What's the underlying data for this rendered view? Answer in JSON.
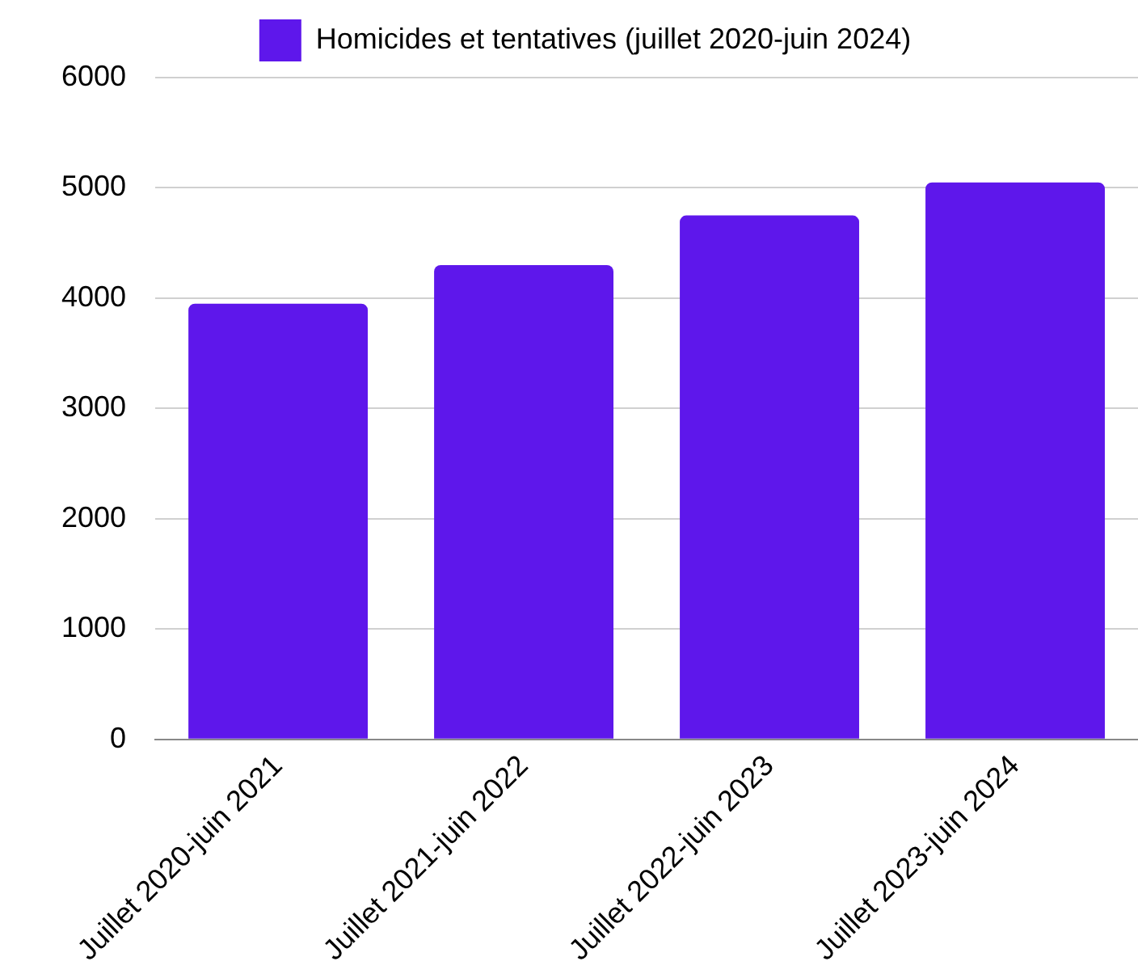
{
  "chart_data": {
    "type": "bar",
    "categories": [
      "Juillet 2020-juin 2021",
      "Juillet 2021-juin 2022",
      "Juillet 2022-juin 2023",
      "Juillet 2023-juin 2024"
    ],
    "series": [
      {
        "name": "Homicides et tentatives (juillet 2020-juin 2024)",
        "color": "#5e17eb",
        "values": [
          3950,
          4300,
          4750,
          5050
        ]
      }
    ],
    "ylim": [
      0,
      6000
    ],
    "yticks": [
      0,
      1000,
      2000,
      3000,
      4000,
      5000,
      6000
    ],
    "grid": "y",
    "legend": "top"
  }
}
